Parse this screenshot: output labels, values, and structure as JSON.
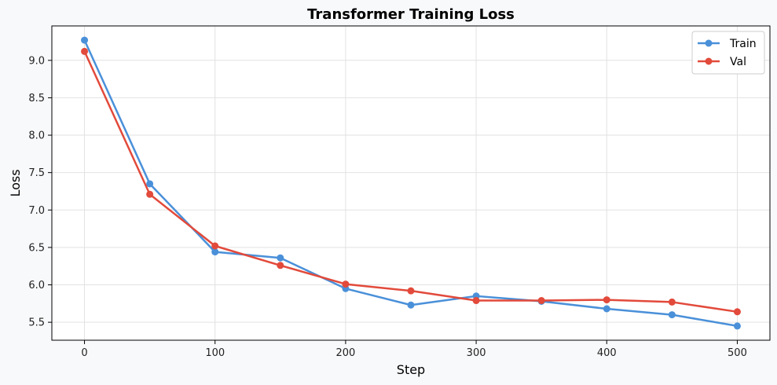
{
  "chart_data": {
    "type": "line",
    "title": "Transformer Training Loss",
    "xlabel": "Step",
    "ylabel": "Loss",
    "x": [
      0,
      50,
      100,
      150,
      200,
      250,
      300,
      350,
      400,
      450,
      500
    ],
    "xlim": [
      -25,
      525
    ],
    "ylim": [
      5.26,
      9.46
    ],
    "xticks": [
      0,
      100,
      200,
      300,
      400,
      500
    ],
    "yticks": [
      5.5,
      6.0,
      6.5,
      7.0,
      7.5,
      8.0,
      8.5,
      9.0
    ],
    "grid": true,
    "legend_position": "top-right",
    "series": [
      {
        "name": "Train",
        "color": "#4a90d9",
        "values": [
          9.27,
          7.35,
          6.44,
          6.36,
          5.95,
          5.73,
          5.85,
          5.78,
          5.68,
          5.6,
          5.45
        ]
      },
      {
        "name": "Val",
        "color": "#e24a3b",
        "values": [
          9.12,
          7.21,
          6.52,
          6.26,
          6.01,
          5.92,
          5.79,
          5.79,
          5.8,
          5.77,
          5.64
        ]
      }
    ]
  }
}
